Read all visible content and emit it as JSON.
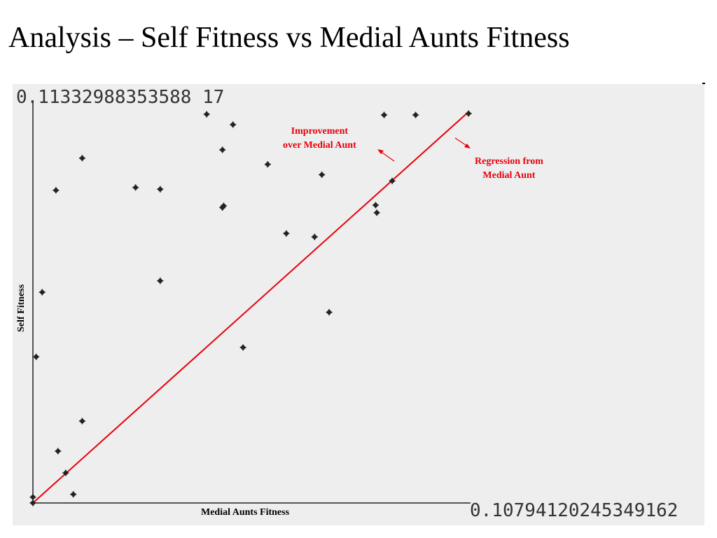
{
  "slide": {
    "title": "Analysis – Self Fitness vs Medial Aunts Fitness"
  },
  "chart_data": {
    "type": "scatter",
    "title": "",
    "xlabel": "Medial Aunts Fitness",
    "ylabel": "Self Fitness",
    "y_max_label": "0.11332988353588 17",
    "x_max_label": "0.10794120245349162",
    "xlim": [
      0,
      0.10794120245349162
    ],
    "ylim": [
      0,
      0.1133298835358817
    ],
    "grid": false,
    "points_color": "#222222",
    "line_color": "#e8000b",
    "reference_line": {
      "x": [
        0,
        0.10794120245349162
      ],
      "y": [
        0,
        0.1133298835358817
      ]
    },
    "annotations": [
      {
        "text_lines": [
          "Improvement",
          "over Medial Aunt"
        ]
      },
      {
        "text_lines": [
          "Regression from",
          "Medial Aunt"
        ]
      }
    ],
    "points": [
      {
        "x": 0.0,
        "y": 0.0017
      },
      {
        "x": 0.0,
        "y": 0.0
      },
      {
        "x": 0.0008,
        "y": 0.0423
      },
      {
        "x": 0.0023,
        "y": 0.061
      },
      {
        "x": 0.0057,
        "y": 0.0905
      },
      {
        "x": 0.0062,
        "y": 0.015
      },
      {
        "x": 0.0081,
        "y": 0.0087
      },
      {
        "x": 0.01,
        "y": 0.0025
      },
      {
        "x": 0.0122,
        "y": 0.0237
      },
      {
        "x": 0.0122,
        "y": 0.0998
      },
      {
        "x": 0.0254,
        "y": 0.0913
      },
      {
        "x": 0.0315,
        "y": 0.0908
      },
      {
        "x": 0.0315,
        "y": 0.0643
      },
      {
        "x": 0.043,
        "y": 0.1125
      },
      {
        "x": 0.0469,
        "y": 0.1022
      },
      {
        "x": 0.0469,
        "y": 0.0855
      },
      {
        "x": 0.0472,
        "y": 0.086
      },
      {
        "x": 0.0495,
        "y": 0.1095
      },
      {
        "x": 0.052,
        "y": 0.045
      },
      {
        "x": 0.0581,
        "y": 0.098
      },
      {
        "x": 0.0627,
        "y": 0.078
      },
      {
        "x": 0.0697,
        "y": 0.077
      },
      {
        "x": 0.0715,
        "y": 0.095
      },
      {
        "x": 0.0733,
        "y": 0.0552
      },
      {
        "x": 0.0848,
        "y": 0.0862
      },
      {
        "x": 0.0851,
        "y": 0.084
      },
      {
        "x": 0.0869,
        "y": 0.1123
      },
      {
        "x": 0.0889,
        "y": 0.0932
      },
      {
        "x": 0.0947,
        "y": 0.1123
      },
      {
        "x": 0.1078,
        "y": 0.1127
      }
    ]
  }
}
